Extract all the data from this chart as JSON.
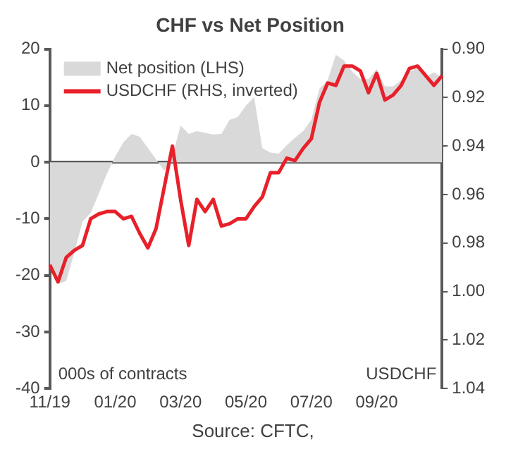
{
  "chart_data": {
    "type": "area",
    "title": "CHF vs Net Position",
    "ylabel": "000s of contracts",
    "y2label": "USDCHF",
    "annotations": [
      "Source: CFTC,"
    ],
    "categories": [
      "11/19",
      null,
      null,
      null,
      null,
      null,
      null,
      null,
      "01/20",
      null,
      null,
      null,
      null,
      null,
      null,
      null,
      "03/20",
      null,
      null,
      null,
      null,
      null,
      null,
      null,
      "05/20",
      null,
      null,
      null,
      null,
      null,
      null,
      null,
      "07/20",
      null,
      null,
      null,
      null,
      null,
      null,
      null,
      "09/20",
      null,
      null,
      null,
      null,
      null,
      null,
      null,
      null
    ],
    "series": [
      {
        "name": "Net position (LHS)",
        "color": "#d9d9d9",
        "values": [
          -18,
          -21.5,
          -21,
          -16,
          -10.5,
          -9,
          -5.5,
          -2,
          1,
          3.5,
          5,
          4.5,
          2.5,
          0.5,
          -1.5,
          1,
          6.5,
          5,
          5.5,
          5.2,
          4.9,
          5,
          7.5,
          8,
          10,
          11.5,
          2.5,
          1.7,
          1.5,
          3,
          4.3,
          5.5,
          7.5,
          13,
          14.5,
          19,
          18,
          16,
          14.7,
          14.7,
          16.5,
          13.4,
          13.4,
          14.5,
          16,
          16.7,
          15,
          15.9,
          14.9
        ]
      },
      {
        "name": "USDCHF (RHS, inverted)",
        "type": "line",
        "axis": "y2",
        "color": "#e8202a",
        "values": [
          0.989,
          0.996,
          0.986,
          0.983,
          0.981,
          0.97,
          0.968,
          0.967,
          0.967,
          0.97,
          0.969,
          0.976,
          0.982,
          0.974,
          0.957,
          0.94,
          0.962,
          0.981,
          0.962,
          0.967,
          0.962,
          0.973,
          0.972,
          0.97,
          0.97,
          0.965,
          0.961,
          0.951,
          0.951,
          0.945,
          0.946,
          0.941,
          0.937,
          0.922,
          0.914,
          0.915,
          0.907,
          0.907,
          0.909,
          0.918,
          0.91,
          0.921,
          0.919,
          0.915,
          0.908,
          0.907,
          0.911,
          0.915,
          0.911
        ]
      }
    ],
    "ylim": [
      -40,
      20
    ],
    "yticks": [
      -40,
      -30,
      -20,
      -10,
      0,
      10,
      20
    ],
    "y2lim": [
      1.04,
      0.9
    ],
    "y2ticks": [
      {
        "value": 0.9,
        "label": "0.90"
      },
      {
        "value": 0.92,
        "label": "0.92"
      },
      {
        "value": 0.94,
        "label": "0.94"
      },
      {
        "value": 0.96,
        "label": "0.96"
      },
      {
        "value": 0.98,
        "label": "0.98"
      },
      {
        "value": 1,
        "label": "1.00"
      },
      {
        "value": 1.02,
        "label": "1.02"
      },
      {
        "value": 1.04,
        "label": "1.04"
      }
    ],
    "legend": "top left",
    "marker": "none",
    "line_style": "solid"
  }
}
